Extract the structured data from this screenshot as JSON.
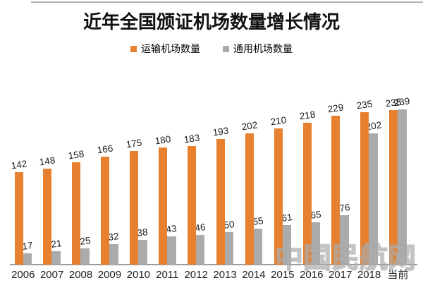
{
  "page": {
    "watermark": "中国民航网"
  },
  "chart_data": {
    "type": "bar",
    "title": "近年全国颁证机场数量增长情况",
    "categories": [
      "2006",
      "2007",
      "2008",
      "2009",
      "2010",
      "2011",
      "2012",
      "2013",
      "2014",
      "2015",
      "2016",
      "2017",
      "2018",
      "当前"
    ],
    "series": [
      {
        "name": "运输机场数量",
        "color": "#E7812F",
        "values": [
          142,
          148,
          158,
          166,
          175,
          180,
          183,
          193,
          202,
          210,
          218,
          229,
          235,
          238
        ]
      },
      {
        "name": "通用机场数量",
        "color": "#ABABAB",
        "values": [
          17,
          21,
          25,
          32,
          38,
          43,
          46,
          50,
          55,
          61,
          65,
          76,
          202,
          239
        ]
      }
    ],
    "xlabel": "",
    "ylabel": "",
    "ylim": [
      0,
      260
    ],
    "grid": false,
    "legend_position": "top",
    "data_labels": true,
    "axis_color": "#9c9c9c",
    "label_color": "#1b1b1b"
  }
}
